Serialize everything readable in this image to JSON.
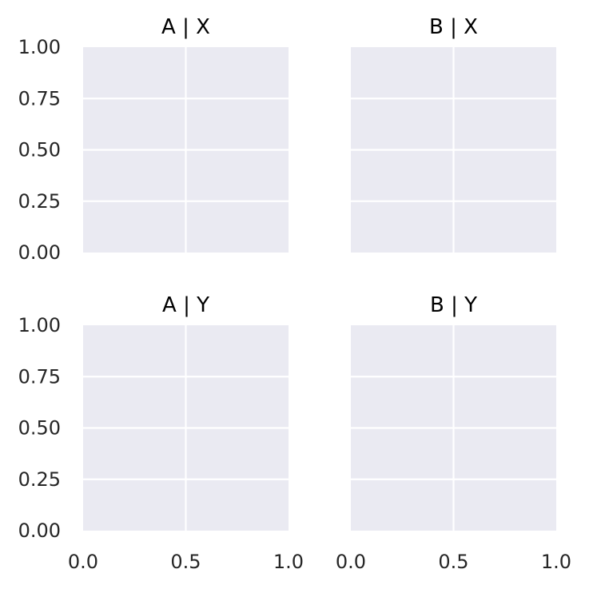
{
  "colors": {
    "background": "#ffffff",
    "axes_facecolor": "#eaeaf2",
    "grid": "#ffffff",
    "title_text": "#000000",
    "tick_text": "#262626"
  },
  "chart_data": {
    "type": "scatter",
    "layout": "facet-grid-2x2",
    "sharex": true,
    "sharey": true,
    "grid": true,
    "legend": "none",
    "panels": [
      {
        "title": "A | X",
        "row": 0,
        "col": 0,
        "xlim": [
          0.0,
          1.0
        ],
        "ylim": [
          0.0,
          1.0
        ],
        "xlabel": "",
        "ylabel": "",
        "series": [],
        "xticks": [],
        "xtick_labels": [],
        "yticks": [
          0.0,
          0.25,
          0.5,
          0.75,
          1.0
        ],
        "ytick_labels": [
          "0.00",
          "0.25",
          "0.50",
          "0.75",
          "1.00"
        ]
      },
      {
        "title": "B | X",
        "row": 0,
        "col": 1,
        "xlim": [
          0.0,
          1.0
        ],
        "ylim": [
          0.0,
          1.0
        ],
        "xlabel": "",
        "ylabel": "",
        "series": [],
        "xticks": [],
        "xtick_labels": [],
        "yticks": [],
        "ytick_labels": []
      },
      {
        "title": "A | Y",
        "row": 1,
        "col": 0,
        "xlim": [
          0.0,
          1.0
        ],
        "ylim": [
          0.0,
          1.0
        ],
        "xlabel": "",
        "ylabel": "",
        "series": [],
        "xticks": [
          0.0,
          0.5,
          1.0
        ],
        "xtick_labels": [
          "0.0",
          "0.5",
          "1.0"
        ],
        "yticks": [
          0.0,
          0.25,
          0.5,
          0.75,
          1.0
        ],
        "ytick_labels": [
          "0.00",
          "0.25",
          "0.50",
          "0.75",
          "1.00"
        ]
      },
      {
        "title": "B | Y",
        "row": 1,
        "col": 1,
        "xlim": [
          0.0,
          1.0
        ],
        "ylim": [
          0.0,
          1.0
        ],
        "xlabel": "",
        "ylabel": "",
        "series": [],
        "xticks": [
          0.0,
          0.5,
          1.0
        ],
        "xtick_labels": [
          "0.0",
          "0.5",
          "1.0"
        ],
        "yticks": [],
        "ytick_labels": []
      }
    ]
  }
}
